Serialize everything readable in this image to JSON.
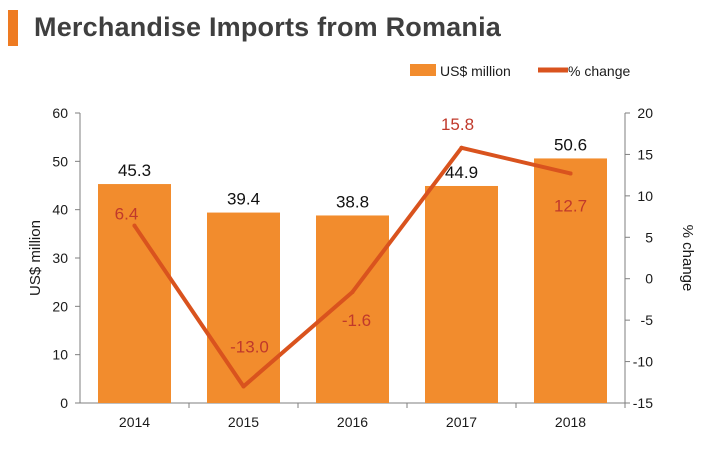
{
  "title": "Merchandise Imports from Romania",
  "colors": {
    "bar": "#f28c2d",
    "line": "#d9531e",
    "pct_label": "#c0392b",
    "title_accent": "#ee7b22"
  },
  "chart_data": {
    "type": "bar",
    "title": "Merchandise Imports from Romania",
    "categories": [
      "2014",
      "2015",
      "2016",
      "2017",
      "2018"
    ],
    "series": [
      {
        "name": "US$ million",
        "type": "bar",
        "axis": "left",
        "values": [
          45.3,
          39.4,
          38.8,
          44.9,
          50.6
        ],
        "labels": [
          "45.3",
          "39.4",
          "38.8",
          "44.9",
          "50.6"
        ]
      },
      {
        "name": "% change",
        "type": "line",
        "axis": "right",
        "values": [
          6.4,
          -13.0,
          -1.6,
          15.8,
          12.7
        ],
        "labels": [
          "6.4",
          "-13.0",
          "-1.6",
          "15.8",
          "12.7"
        ]
      }
    ],
    "ylabel": "US$ million",
    "y2label": "% change",
    "ylim": [
      0,
      60
    ],
    "y2lim": [
      -15,
      20
    ],
    "yticks": [
      "0",
      "10",
      "20",
      "30",
      "40",
      "50",
      "60"
    ],
    "y2ticks": [
      "-15",
      "-10",
      "-5",
      "0",
      "5",
      "10",
      "15",
      "20"
    ],
    "legend": [
      "US$ million",
      "% change"
    ],
    "legend_position": "top-right"
  }
}
